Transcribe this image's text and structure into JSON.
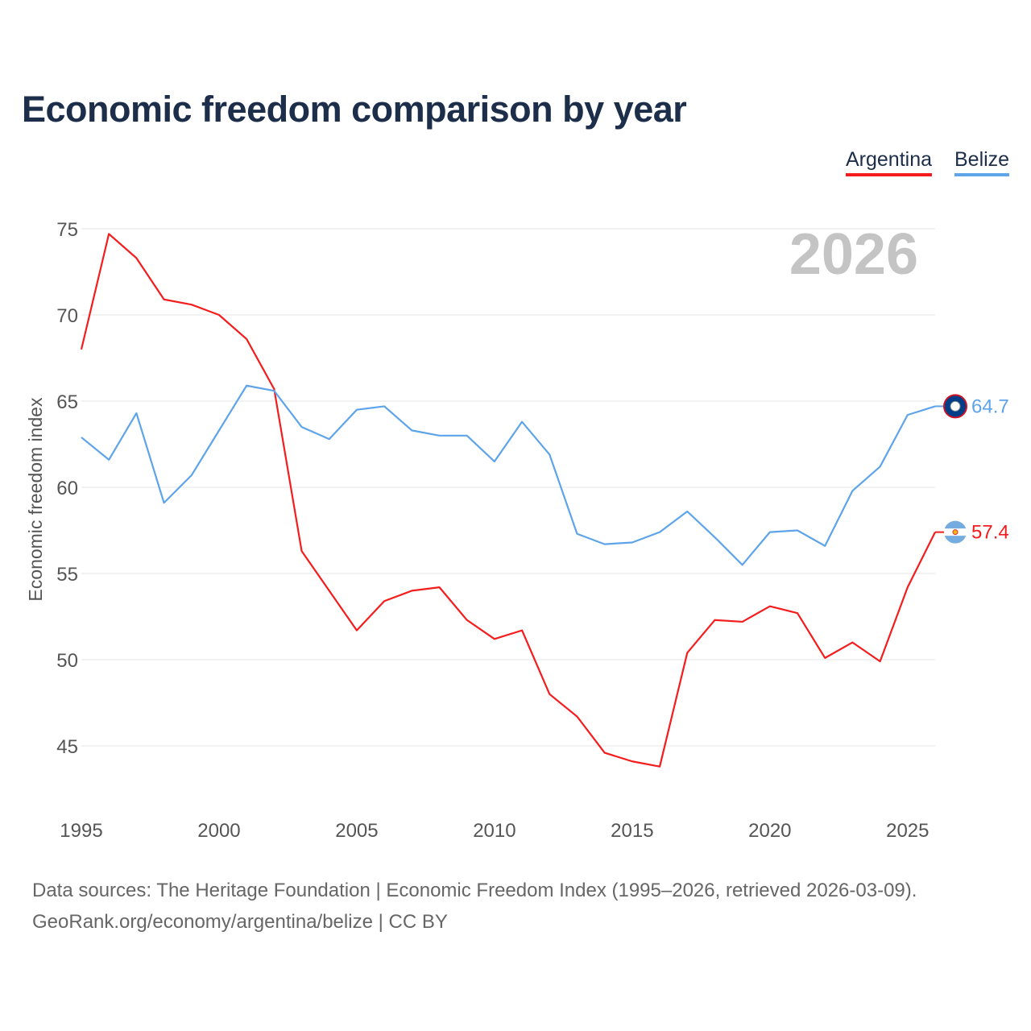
{
  "title": "Economic freedom comparison by year",
  "footer": {
    "line1": "Data sources: The Heritage Foundation | Economic Freedom Index (1995–2026, retrieved 2026-03-09).",
    "line2": "GeoRank.org/economy/argentina/belize | CC BY"
  },
  "chart_data": {
    "type": "line",
    "title": "Economic freedom comparison by year",
    "xlabel": "",
    "ylabel": "Economic freedom index",
    "year_label": "2026",
    "x": [
      1995,
      1996,
      1997,
      1998,
      1999,
      2000,
      2001,
      2002,
      2003,
      2004,
      2005,
      2006,
      2007,
      2008,
      2009,
      2010,
      2011,
      2012,
      2013,
      2014,
      2015,
      2016,
      2017,
      2018,
      2019,
      2020,
      2021,
      2022,
      2023,
      2024,
      2025,
      2026
    ],
    "xlim": [
      1995,
      2026
    ],
    "ylim": [
      41.5,
      76
    ],
    "xticks": [
      1995,
      2000,
      2005,
      2010,
      2015,
      2020,
      2025
    ],
    "yticks": [
      45,
      50,
      55,
      60,
      65,
      70,
      75
    ],
    "grid": true,
    "legend_position": "top-right",
    "series": [
      {
        "name": "Argentina",
        "color": "#f41c1c",
        "end_label": "57.4",
        "values": [
          68.0,
          74.7,
          73.3,
          70.9,
          70.6,
          70.0,
          68.6,
          65.7,
          56.3,
          54.0,
          51.7,
          53.4,
          54.0,
          54.2,
          52.3,
          51.2,
          51.7,
          48.0,
          46.7,
          44.6,
          44.1,
          43.8,
          50.4,
          52.3,
          52.2,
          53.1,
          52.7,
          50.1,
          51.0,
          49.9,
          54.2,
          57.4
        ]
      },
      {
        "name": "Belize",
        "color": "#5ea4ea",
        "end_label": "64.7",
        "values": [
          62.9,
          61.6,
          64.3,
          59.1,
          60.7,
          63.3,
          65.9,
          65.6,
          63.5,
          62.8,
          64.5,
          64.7,
          63.3,
          63.0,
          63.0,
          61.5,
          63.8,
          61.9,
          57.3,
          56.7,
          56.8,
          57.4,
          58.6,
          57.1,
          55.5,
          57.4,
          57.5,
          56.6,
          59.8,
          61.2,
          64.2,
          64.7
        ]
      }
    ]
  }
}
